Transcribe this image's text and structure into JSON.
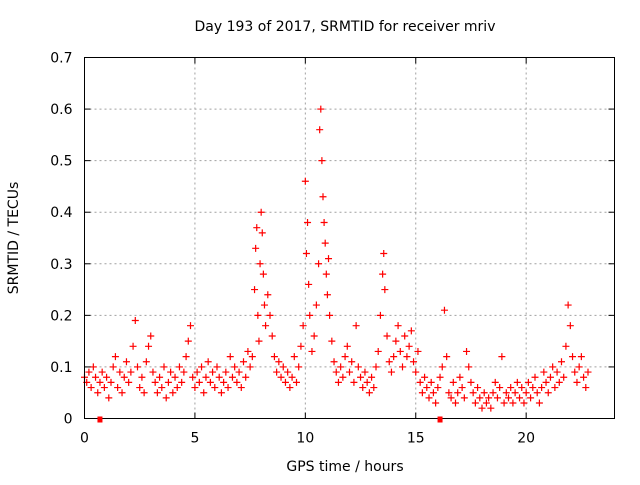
{
  "chart_data": {
    "type": "scatter",
    "title": "Day 193 of 2017, SRMTID for receiver mriv",
    "xlabel": "GPS time / hours",
    "ylabel": "SRMTID / TECUs",
    "xlim": [
      0,
      24
    ],
    "ylim": [
      0,
      0.7
    ],
    "xticks": [
      0,
      5,
      10,
      15,
      20
    ],
    "yticks": [
      0,
      0.1,
      0.2,
      0.3,
      0.4,
      0.5,
      0.6,
      0.7
    ],
    "xtick_labels": [
      "0",
      "5",
      "10",
      "15",
      "20"
    ],
    "ytick_labels": [
      "0",
      "0.1",
      "0.2",
      "0.3",
      "0.4",
      "0.5",
      "0.6",
      "0.7"
    ],
    "grid": true,
    "marker": "+",
    "color": "#ff0000",
    "series": [
      {
        "name": "SRMTID",
        "points": [
          [
            0.0,
            0.08
          ],
          [
            0.1,
            0.07
          ],
          [
            0.2,
            0.09
          ],
          [
            0.3,
            0.06
          ],
          [
            0.4,
            0.1
          ],
          [
            0.5,
            0.08
          ],
          [
            0.6,
            0.05
          ],
          [
            0.7,
            0.07
          ],
          [
            0.8,
            0.09
          ],
          [
            0.9,
            0.06
          ],
          [
            1.0,
            0.08
          ],
          [
            1.1,
            0.04
          ],
          [
            1.2,
            0.07
          ],
          [
            1.3,
            0.1
          ],
          [
            1.4,
            0.12
          ],
          [
            1.5,
            0.06
          ],
          [
            1.6,
            0.09
          ],
          [
            1.7,
            0.05
          ],
          [
            1.8,
            0.08
          ],
          [
            1.9,
            0.11
          ],
          [
            2.0,
            0.07
          ],
          [
            2.1,
            0.09
          ],
          [
            2.2,
            0.14
          ],
          [
            2.3,
            0.19
          ],
          [
            2.4,
            0.1
          ],
          [
            2.5,
            0.06
          ],
          [
            2.6,
            0.08
          ],
          [
            2.7,
            0.05
          ],
          [
            2.8,
            0.11
          ],
          [
            2.9,
            0.14
          ],
          [
            3.0,
            0.16
          ],
          [
            3.1,
            0.09
          ],
          [
            3.2,
            0.07
          ],
          [
            3.3,
            0.05
          ],
          [
            3.4,
            0.08
          ],
          [
            3.5,
            0.06
          ],
          [
            3.6,
            0.1
          ],
          [
            3.7,
            0.04
          ],
          [
            3.8,
            0.07
          ],
          [
            3.9,
            0.09
          ],
          [
            4.0,
            0.05
          ],
          [
            4.1,
            0.08
          ],
          [
            4.2,
            0.06
          ],
          [
            4.3,
            0.1
          ],
          [
            4.4,
            0.07
          ],
          [
            4.5,
            0.09
          ],
          [
            4.6,
            0.12
          ],
          [
            4.7,
            0.15
          ],
          [
            4.8,
            0.18
          ],
          [
            4.9,
            0.08
          ],
          [
            5.0,
            0.06
          ],
          [
            5.1,
            0.09
          ],
          [
            5.2,
            0.07
          ],
          [
            5.3,
            0.1
          ],
          [
            5.4,
            0.05
          ],
          [
            5.5,
            0.08
          ],
          [
            5.6,
            0.11
          ],
          [
            5.7,
            0.07
          ],
          [
            5.8,
            0.09
          ],
          [
            5.9,
            0.06
          ],
          [
            6.0,
            0.1
          ],
          [
            6.1,
            0.08
          ],
          [
            6.2,
            0.05
          ],
          [
            6.3,
            0.07
          ],
          [
            6.4,
            0.09
          ],
          [
            6.5,
            0.06
          ],
          [
            6.6,
            0.12
          ],
          [
            6.7,
            0.08
          ],
          [
            6.8,
            0.1
          ],
          [
            6.9,
            0.07
          ],
          [
            7.0,
            0.09
          ],
          [
            7.1,
            0.06
          ],
          [
            7.2,
            0.11
          ],
          [
            7.3,
            0.08
          ],
          [
            7.4,
            0.13
          ],
          [
            7.5,
            0.1
          ],
          [
            7.6,
            0.12
          ],
          [
            7.7,
            0.25
          ],
          [
            7.75,
            0.33
          ],
          [
            7.8,
            0.37
          ],
          [
            7.85,
            0.2
          ],
          [
            7.9,
            0.15
          ],
          [
            7.95,
            0.3
          ],
          [
            8.0,
            0.4
          ],
          [
            8.05,
            0.36
          ],
          [
            8.1,
            0.28
          ],
          [
            8.15,
            0.22
          ],
          [
            8.2,
            0.18
          ],
          [
            8.3,
            0.24
          ],
          [
            8.4,
            0.2
          ],
          [
            8.5,
            0.16
          ],
          [
            8.6,
            0.12
          ],
          [
            8.7,
            0.09
          ],
          [
            8.8,
            0.11
          ],
          [
            8.9,
            0.08
          ],
          [
            9.0,
            0.1
          ],
          [
            9.1,
            0.07
          ],
          [
            9.2,
            0.09
          ],
          [
            9.3,
            0.06
          ],
          [
            9.4,
            0.08
          ],
          [
            9.5,
            0.12
          ],
          [
            9.6,
            0.07
          ],
          [
            9.7,
            0.1
          ],
          [
            9.8,
            0.14
          ],
          [
            9.9,
            0.18
          ],
          [
            10.0,
            0.46
          ],
          [
            10.05,
            0.32
          ],
          [
            10.1,
            0.38
          ],
          [
            10.15,
            0.26
          ],
          [
            10.2,
            0.2
          ],
          [
            10.3,
            0.13
          ],
          [
            10.4,
            0.16
          ],
          [
            10.5,
            0.22
          ],
          [
            10.6,
            0.3
          ],
          [
            10.65,
            0.56
          ],
          [
            10.7,
            0.6
          ],
          [
            10.75,
            0.5
          ],
          [
            10.8,
            0.43
          ],
          [
            10.85,
            0.38
          ],
          [
            10.9,
            0.34
          ],
          [
            10.95,
            0.28
          ],
          [
            11.0,
            0.24
          ],
          [
            11.05,
            0.31
          ],
          [
            11.1,
            0.2
          ],
          [
            11.2,
            0.15
          ],
          [
            11.3,
            0.11
          ],
          [
            11.4,
            0.09
          ],
          [
            11.5,
            0.07
          ],
          [
            11.6,
            0.1
          ],
          [
            11.7,
            0.08
          ],
          [
            11.8,
            0.12
          ],
          [
            11.9,
            0.14
          ],
          [
            12.0,
            0.09
          ],
          [
            12.1,
            0.11
          ],
          [
            12.2,
            0.07
          ],
          [
            12.3,
            0.18
          ],
          [
            12.4,
            0.1
          ],
          [
            12.5,
            0.08
          ],
          [
            12.6,
            0.06
          ],
          [
            12.7,
            0.09
          ],
          [
            12.8,
            0.07
          ],
          [
            12.9,
            0.05
          ],
          [
            13.0,
            0.08
          ],
          [
            13.1,
            0.06
          ],
          [
            13.2,
            0.1
          ],
          [
            13.3,
            0.13
          ],
          [
            13.4,
            0.2
          ],
          [
            13.5,
            0.28
          ],
          [
            13.55,
            0.32
          ],
          [
            13.6,
            0.25
          ],
          [
            13.7,
            0.16
          ],
          [
            13.8,
            0.11
          ],
          [
            13.9,
            0.09
          ],
          [
            14.0,
            0.12
          ],
          [
            14.1,
            0.15
          ],
          [
            14.2,
            0.18
          ],
          [
            14.3,
            0.13
          ],
          [
            14.4,
            0.1
          ],
          [
            14.5,
            0.16
          ],
          [
            14.6,
            0.12
          ],
          [
            14.7,
            0.14
          ],
          [
            14.8,
            0.17
          ],
          [
            14.9,
            0.11
          ],
          [
            15.0,
            0.09
          ],
          [
            15.1,
            0.13
          ],
          [
            15.2,
            0.07
          ],
          [
            15.3,
            0.05
          ],
          [
            15.4,
            0.08
          ],
          [
            15.5,
            0.06
          ],
          [
            15.6,
            0.04
          ],
          [
            15.7,
            0.07
          ],
          [
            15.8,
            0.05
          ],
          [
            15.9,
            0.03
          ],
          [
            16.0,
            0.06
          ],
          [
            16.1,
            0.08
          ],
          [
            16.2,
            0.1
          ],
          [
            16.3,
            0.21
          ],
          [
            16.4,
            0.12
          ],
          [
            16.5,
            0.05
          ],
          [
            16.6,
            0.04
          ],
          [
            16.7,
            0.07
          ],
          [
            16.8,
            0.03
          ],
          [
            16.9,
            0.05
          ],
          [
            17.0,
            0.08
          ],
          [
            17.1,
            0.06
          ],
          [
            17.2,
            0.04
          ],
          [
            17.3,
            0.13
          ],
          [
            17.4,
            0.1
          ],
          [
            17.5,
            0.07
          ],
          [
            17.6,
            0.05
          ],
          [
            17.7,
            0.03
          ],
          [
            17.8,
            0.06
          ],
          [
            17.9,
            0.04
          ],
          [
            18.0,
            0.02
          ],
          [
            18.1,
            0.05
          ],
          [
            18.2,
            0.03
          ],
          [
            18.3,
            0.04
          ],
          [
            18.4,
            0.02
          ],
          [
            18.5,
            0.05
          ],
          [
            18.6,
            0.07
          ],
          [
            18.7,
            0.04
          ],
          [
            18.8,
            0.06
          ],
          [
            18.9,
            0.12
          ],
          [
            19.0,
            0.03
          ],
          [
            19.1,
            0.05
          ],
          [
            19.2,
            0.04
          ],
          [
            19.3,
            0.06
          ],
          [
            19.4,
            0.03
          ],
          [
            19.5,
            0.05
          ],
          [
            19.6,
            0.07
          ],
          [
            19.7,
            0.04
          ],
          [
            19.8,
            0.06
          ],
          [
            19.9,
            0.03
          ],
          [
            20.0,
            0.05
          ],
          [
            20.1,
            0.07
          ],
          [
            20.2,
            0.04
          ],
          [
            20.3,
            0.06
          ],
          [
            20.4,
            0.08
          ],
          [
            20.5,
            0.05
          ],
          [
            20.6,
            0.03
          ],
          [
            20.7,
            0.06
          ],
          [
            20.8,
            0.09
          ],
          [
            20.9,
            0.07
          ],
          [
            21.0,
            0.05
          ],
          [
            21.1,
            0.08
          ],
          [
            21.2,
            0.1
          ],
          [
            21.3,
            0.06
          ],
          [
            21.4,
            0.09
          ],
          [
            21.5,
            0.07
          ],
          [
            21.6,
            0.11
          ],
          [
            21.7,
            0.08
          ],
          [
            21.8,
            0.14
          ],
          [
            21.9,
            0.22
          ],
          [
            22.0,
            0.18
          ],
          [
            22.1,
            0.12
          ],
          [
            22.2,
            0.09
          ],
          [
            22.3,
            0.07
          ],
          [
            22.4,
            0.1
          ],
          [
            22.5,
            0.12
          ],
          [
            22.6,
            0.08
          ],
          [
            22.7,
            0.06
          ],
          [
            22.8,
            0.09
          ]
        ]
      }
    ],
    "x_axis_markers": [
      0.7,
      16.1
    ]
  }
}
